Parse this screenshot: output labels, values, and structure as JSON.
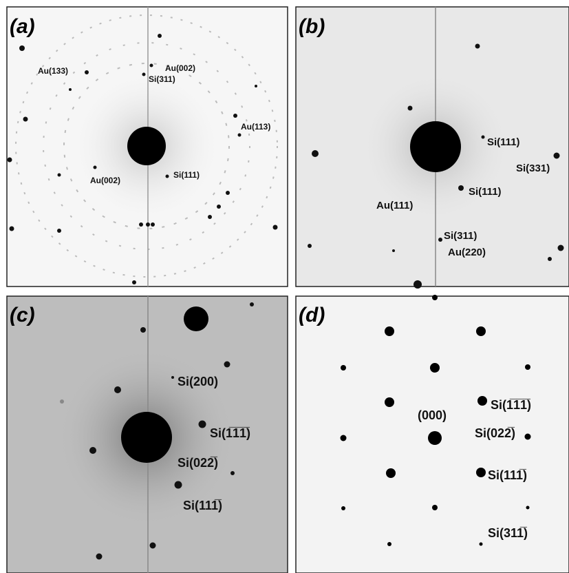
{
  "panels": [
    {
      "letter": "(a)",
      "labels": [
        "Au(133)",
        "Au(002)",
        "Si(311)",
        "Au(113)",
        "Au(002)",
        "Si(111)"
      ]
    },
    {
      "letter": "(b)",
      "labels": [
        "Si(111)",
        "Si(331)",
        "Si(111)",
        "Au(111)",
        "Si(311)",
        "Au(220)"
      ]
    },
    {
      "letter": "(c)",
      "labels": [
        "Si(200)",
        "Si(1̅1̅1̅)",
        "Si(022̅)",
        "Si(111̅)"
      ]
    },
    {
      "letter": "(d)",
      "labels": [
        "(000)",
        "Si(1̅1̅1̅)",
        "Si(022̅)",
        "Si(111̅)",
        "Si(311̅)"
      ]
    }
  ]
}
